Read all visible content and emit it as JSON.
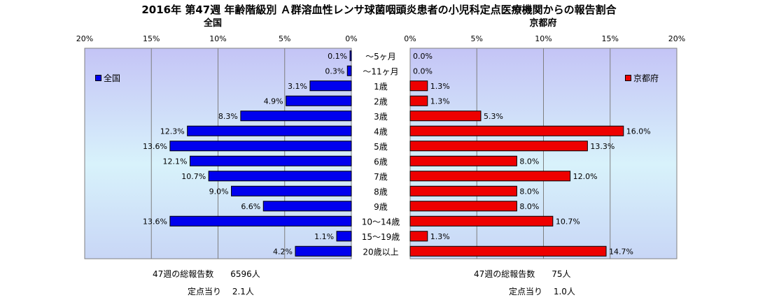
{
  "title": "2016年 第47週 年齢階級別 Ａ群溶血性レンサ球菌咽頭炎患者の小児科定点医療機関からの報告割合",
  "chart_data": {
    "type": "bar",
    "orientation": "horizontal-butterfly",
    "categories": [
      "〜5ヶ月",
      "〜11ヶ月",
      "1歳",
      "2歳",
      "3歳",
      "4歳",
      "5歳",
      "6歳",
      "7歳",
      "8歳",
      "9歳",
      "10〜14歳",
      "15〜19歳",
      "20歳以上"
    ],
    "series": [
      {
        "name": "全国",
        "panel_title": "全国",
        "legend": "全国",
        "color": "#0000ee",
        "values": [
          0.1,
          0.3,
          3.1,
          4.9,
          8.3,
          12.3,
          13.6,
          12.1,
          10.7,
          9.0,
          6.6,
          13.6,
          1.1,
          4.2
        ]
      },
      {
        "name": "京都府",
        "panel_title": "京都府",
        "legend": "京都府",
        "color": "#ee0000",
        "values": [
          0.0,
          0.0,
          1.3,
          1.3,
          5.3,
          16.0,
          13.3,
          8.0,
          12.0,
          8.0,
          8.0,
          10.7,
          1.3,
          14.7
        ]
      }
    ],
    "xlim": [
      0,
      20
    ],
    "ticks": [
      "0%",
      "5%",
      "10%",
      "15%",
      "20%"
    ],
    "value_suffix": "%",
    "grid": true
  },
  "footer": {
    "national_total": "47週の総報告数　　6596人",
    "national_per": "定点当り　 2.1人",
    "kyoto_total": "47週の総報告数　　75人",
    "kyoto_per": "定点当り　 1.0人"
  }
}
